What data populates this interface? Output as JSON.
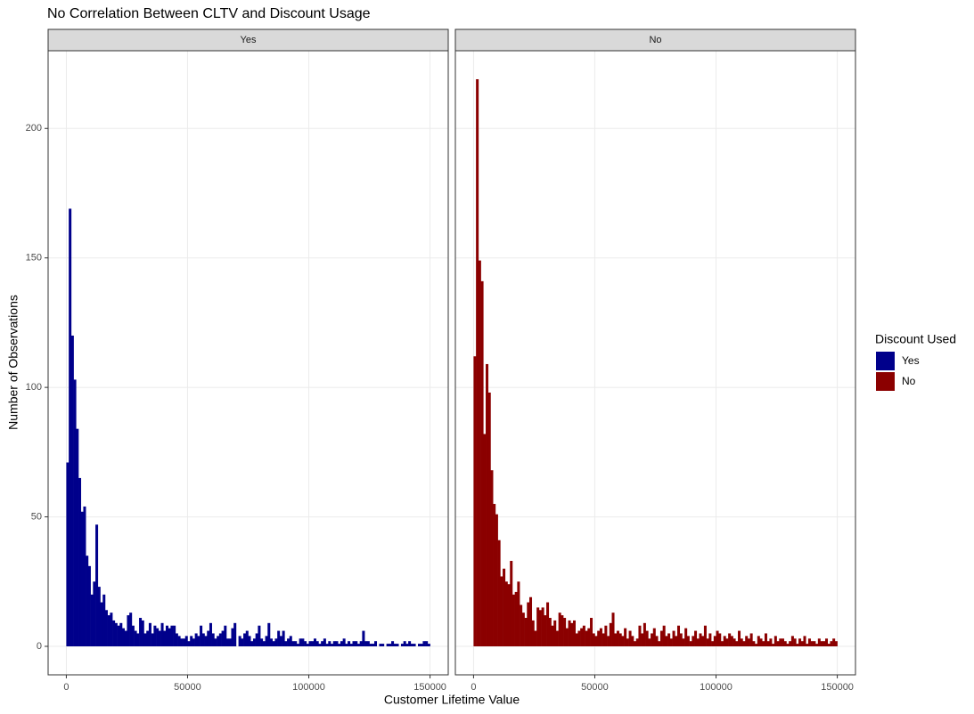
{
  "chart_data": {
    "type": "histogram",
    "title": "No Correlation Between CLTV and Discount Usage",
    "xlabel": "Customer Lifetime Value",
    "ylabel": "Number of Observations",
    "legend_title": "Discount Used",
    "legend_position": "right",
    "grid": true,
    "xlim": [
      -7500,
      157500
    ],
    "ylim": [
      -11,
      230
    ],
    "xticks": [
      0,
      50000,
      100000,
      150000
    ],
    "yticks": [
      0,
      50,
      100,
      150,
      200
    ],
    "bins": [
      0,
      1000,
      2000,
      3000,
      4000,
      5000,
      6000,
      7000,
      8000,
      9000,
      10000,
      11000,
      12000,
      13000,
      14000,
      15000,
      16000,
      17000,
      18000,
      19000,
      20000,
      21000,
      22000,
      23000,
      24000,
      25000,
      26000,
      27000,
      28000,
      29000,
      30000,
      31000,
      32000,
      33000,
      34000,
      35000,
      36000,
      37000,
      38000,
      39000,
      40000,
      41000,
      42000,
      43000,
      44000,
      45000,
      46000,
      47000,
      48000,
      49000,
      50000,
      51000,
      52000,
      53000,
      54000,
      55000,
      56000,
      57000,
      58000,
      59000,
      60000,
      61000,
      62000,
      63000,
      64000,
      65000,
      66000,
      67000,
      68000,
      69000,
      70000,
      71000,
      72000,
      73000,
      74000,
      75000,
      76000,
      77000,
      78000,
      79000,
      80000,
      81000,
      82000,
      83000,
      84000,
      85000,
      86000,
      87000,
      88000,
      89000,
      90000,
      91000,
      92000,
      93000,
      94000,
      95000,
      96000,
      97000,
      98000,
      99000,
      100000,
      101000,
      102000,
      103000,
      104000,
      105000,
      106000,
      107000,
      108000,
      109000,
      110000,
      111000,
      112000,
      113000,
      114000,
      115000,
      116000,
      117000,
      118000,
      119000,
      120000,
      121000,
      122000,
      123000,
      124000,
      125000,
      126000,
      127000,
      128000,
      129000,
      130000,
      131000,
      132000,
      133000,
      134000,
      135000,
      136000,
      137000,
      138000,
      139000,
      140000,
      141000,
      142000,
      143000,
      144000,
      145000,
      146000,
      147000,
      148000,
      149000,
      150000
    ],
    "series": [
      {
        "name": "Yes",
        "color": "#00008b",
        "values": [
          71,
          169,
          120,
          103,
          84,
          65,
          52,
          54,
          35,
          31,
          20,
          25,
          47,
          23,
          17,
          20,
          14,
          12,
          13,
          10,
          9,
          8,
          9,
          7,
          6,
          12,
          13,
          8,
          6,
          5,
          11,
          10,
          5,
          6,
          9,
          5,
          8,
          7,
          6,
          9,
          6,
          8,
          7,
          8,
          8,
          5,
          4,
          3,
          3,
          4,
          2,
          4,
          3,
          5,
          4,
          8,
          5,
          4,
          6,
          9,
          5,
          3,
          4,
          5,
          6,
          8,
          3,
          3,
          7,
          9,
          0,
          4,
          3,
          5,
          6,
          4,
          2,
          3,
          5,
          8,
          3,
          2,
          4,
          9,
          3,
          2,
          3,
          6,
          4,
          6,
          2,
          3,
          4,
          2,
          2,
          1,
          3,
          3,
          2,
          1,
          2,
          2,
          3,
          2,
          1,
          2,
          3,
          1,
          2,
          1,
          2,
          2,
          1,
          2,
          3,
          1,
          2,
          1,
          2,
          2,
          1,
          2,
          6,
          2,
          2,
          1,
          1,
          2,
          0,
          1,
          1,
          0,
          1,
          1,
          2,
          1,
          1,
          0,
          1,
          2,
          1,
          2,
          1,
          1,
          0,
          1,
          1,
          2,
          2,
          1
        ]
      },
      {
        "name": "No",
        "color": "#8b0000",
        "values": [
          112,
          219,
          149,
          141,
          82,
          109,
          98,
          68,
          55,
          51,
          41,
          27,
          30,
          25,
          24,
          33,
          20,
          21,
          25,
          16,
          13,
          11,
          17,
          19,
          10,
          6,
          15,
          14,
          15,
          12,
          17,
          11,
          8,
          10,
          6,
          13,
          12,
          11,
          7,
          10,
          9,
          10,
          5,
          6,
          7,
          8,
          6,
          7,
          11,
          5,
          4,
          6,
          7,
          5,
          8,
          4,
          9,
          13,
          5,
          6,
          5,
          4,
          7,
          3,
          6,
          4,
          2,
          3,
          8,
          5,
          9,
          6,
          3,
          5,
          7,
          4,
          2,
          6,
          8,
          4,
          5,
          3,
          6,
          4,
          8,
          5,
          3,
          7,
          4,
          2,
          4,
          6,
          3,
          5,
          4,
          8,
          3,
          5,
          2,
          4,
          6,
          5,
          2,
          4,
          3,
          5,
          4,
          3,
          2,
          6,
          3,
          2,
          4,
          3,
          5,
          2,
          1,
          4,
          3,
          2,
          5,
          2,
          3,
          1,
          4,
          2,
          3,
          3,
          2,
          1,
          2,
          4,
          3,
          1,
          3,
          2,
          4,
          1,
          3,
          2,
          2,
          1,
          3,
          2,
          2,
          3,
          1,
          2,
          3,
          2
        ]
      }
    ]
  }
}
